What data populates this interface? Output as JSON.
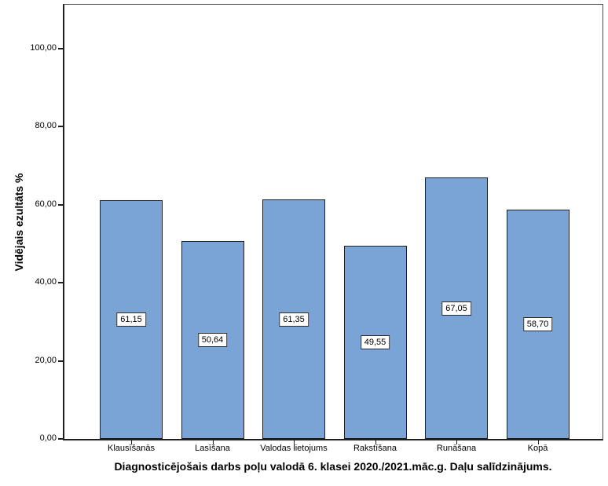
{
  "chart_data": {
    "type": "bar",
    "title": "Diagnosticējošais darbs poļu valodā 6. klasei 2020./2021.māc.g. Daļu salīdzinājums.",
    "ylabel": "Vidējais ezultāts %",
    "xlabel": "",
    "categories": [
      "Klausīšanās",
      "Lasīšana",
      "Valodas lietojums",
      "Rakstīšana",
      "Runāšana",
      "Kopā"
    ],
    "values": [
      61.15,
      50.64,
      61.35,
      49.55,
      67.05,
      58.7
    ],
    "bar_value_labels": [
      "61,15",
      "50,64",
      "61,35",
      "49,55",
      "67,05",
      "58,70"
    ],
    "y_ticks": [
      {
        "value": 0,
        "label": "0,00"
      },
      {
        "value": 20,
        "label": "20,00"
      },
      {
        "value": 40,
        "label": "40,00"
      },
      {
        "value": 60,
        "label": "60,00"
      },
      {
        "value": 80,
        "label": "80,00"
      },
      {
        "value": 100,
        "label": "100,00"
      }
    ],
    "ylim": [
      0,
      111.5
    ],
    "grid": false,
    "legend": null,
    "value_label_position": "center-of-bar",
    "colors": {
      "bar_fill": "#7BA4D6",
      "bar_border": "#1f1f1f",
      "frame": "#4a4a4a",
      "axis": "#1f1f1f",
      "text": "#000000",
      "value_label_bg": "#ffffff",
      "value_label_border": "#2a2a2a"
    }
  }
}
